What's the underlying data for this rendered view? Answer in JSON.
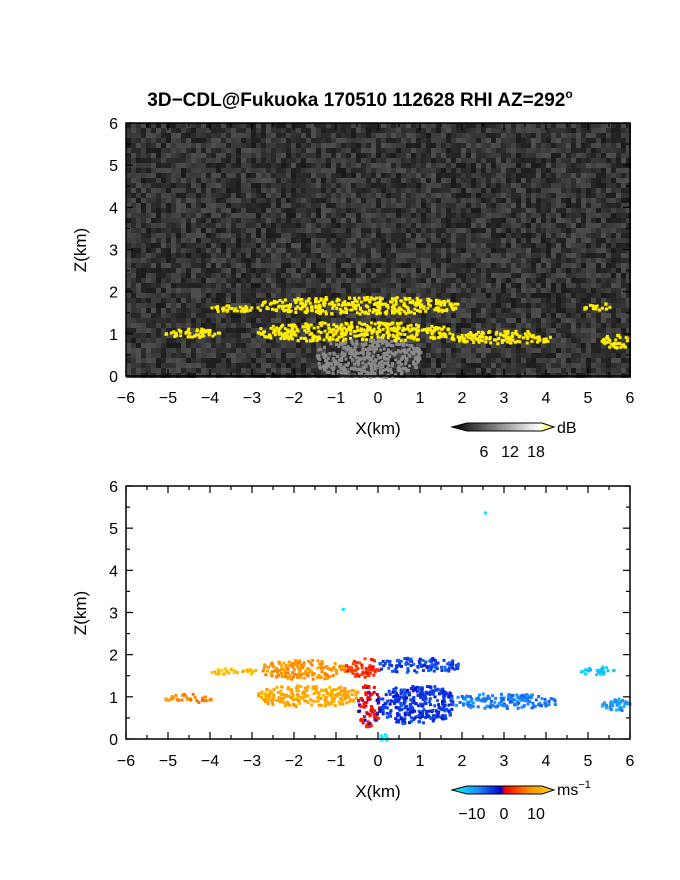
{
  "chart_data": [
    {
      "type": "heatmap",
      "title": "3D−CDL@Fukuoka 170510 112628 RHI AZ=292",
      "title_superscript": "o",
      "xlabel": "X(km)",
      "ylabel": "Z(km)",
      "xlim": [
        -6,
        6
      ],
      "ylim": [
        0,
        6
      ],
      "x_ticks": [
        "−6",
        "−5",
        "−4",
        "−3",
        "−2",
        "−1",
        "0",
        "1",
        "2",
        "3",
        "4",
        "5",
        "6"
      ],
      "y_ticks": [
        "0",
        "1",
        "2",
        "3",
        "4",
        "5",
        "6"
      ],
      "background": "grayscale noise (low SNR)",
      "colorbar": {
        "unit": "dB",
        "ticks": [
          "6",
          "12",
          "18"
        ],
        "colors": [
          "#000000",
          "#ffffff",
          "#ffff00"
        ]
      },
      "features": [
        {
          "x": [
            -5.1,
            -3.8
          ],
          "z": [
            0.95,
            1.15
          ],
          "value": "high"
        },
        {
          "x": [
            -4.0,
            -2.8
          ],
          "z": [
            1.55,
            1.7
          ],
          "value": "high"
        },
        {
          "x": [
            -2.8,
            1.9
          ],
          "z": [
            1.5,
            1.9
          ],
          "value": "high"
        },
        {
          "x": [
            -2.9,
            1.7
          ],
          "z": [
            0.85,
            1.3
          ],
          "value": "high"
        },
        {
          "x": [
            1.7,
            4.2
          ],
          "z": [
            0.8,
            1.1
          ],
          "value": "high"
        },
        {
          "x": [
            4.8,
            5.6
          ],
          "z": [
            1.6,
            1.75
          ],
          "value": "high"
        },
        {
          "x": [
            5.3,
            6.0
          ],
          "z": [
            0.7,
            1.0
          ],
          "value": "high"
        },
        {
          "x": [
            -1.5,
            1.0
          ],
          "z": [
            0.0,
            0.9
          ],
          "value": "medium"
        }
      ]
    },
    {
      "type": "heatmap",
      "xlabel": "X(km)",
      "ylabel": "Z(km)",
      "xlim": [
        -6,
        6
      ],
      "ylim": [
        0,
        6
      ],
      "x_ticks": [
        "−6",
        "−5",
        "−4",
        "−3",
        "−2",
        "−1",
        "0",
        "1",
        "2",
        "3",
        "4",
        "5",
        "6"
      ],
      "y_ticks": [
        "0",
        "1",
        "2",
        "3",
        "4",
        "5",
        "6"
      ],
      "colorbar": {
        "unit": "ms",
        "unit_superscript": "−1",
        "ticks": [
          "−10",
          "0",
          "10"
        ],
        "colors": [
          "#00ffff",
          "#1e90ff",
          "#0000cd",
          "#ff0000",
          "#ff8c00",
          "#ffd700"
        ]
      },
      "features": [
        {
          "x": [
            -5.1,
            -4.0
          ],
          "z": [
            0.9,
            1.1
          ],
          "value": 8
        },
        {
          "x": [
            -4.0,
            -2.9
          ],
          "z": [
            1.55,
            1.7
          ],
          "value": 13
        },
        {
          "x": [
            -2.8,
            -0.8
          ],
          "z": [
            1.45,
            1.9
          ],
          "value": 9
        },
        {
          "x": [
            -0.8,
            0.0
          ],
          "z": [
            1.5,
            1.95
          ],
          "value": 3
        },
        {
          "x": [
            0.0,
            1.9
          ],
          "z": [
            1.6,
            1.95
          ],
          "value": -4
        },
        {
          "x": [
            -2.9,
            -0.5
          ],
          "z": [
            0.8,
            1.3
          ],
          "value": 11
        },
        {
          "x": [
            -0.5,
            0.0
          ],
          "z": [
            0.3,
            1.3
          ],
          "value": 1
        },
        {
          "x": [
            0.0,
            1.8
          ],
          "z": [
            0.4,
            1.3
          ],
          "value": -3
        },
        {
          "x": [
            1.7,
            4.2
          ],
          "z": [
            0.75,
            1.1
          ],
          "value": -7
        },
        {
          "x": [
            4.8,
            5.6
          ],
          "z": [
            1.55,
            1.75
          ],
          "value": -12
        },
        {
          "x": [
            5.3,
            6.0
          ],
          "z": [
            0.7,
            1.0
          ],
          "value": -9
        },
        {
          "x": [
            -0.9,
            -0.8
          ],
          "z": [
            3.1,
            3.15
          ],
          "value": -15
        },
        {
          "x": [
            2.45,
            2.5
          ],
          "z": [
            5.35,
            5.4
          ],
          "value": -15
        },
        {
          "x": [
            0.0,
            0.3
          ],
          "z": [
            0.0,
            0.15
          ],
          "value": -16
        }
      ]
    }
  ]
}
